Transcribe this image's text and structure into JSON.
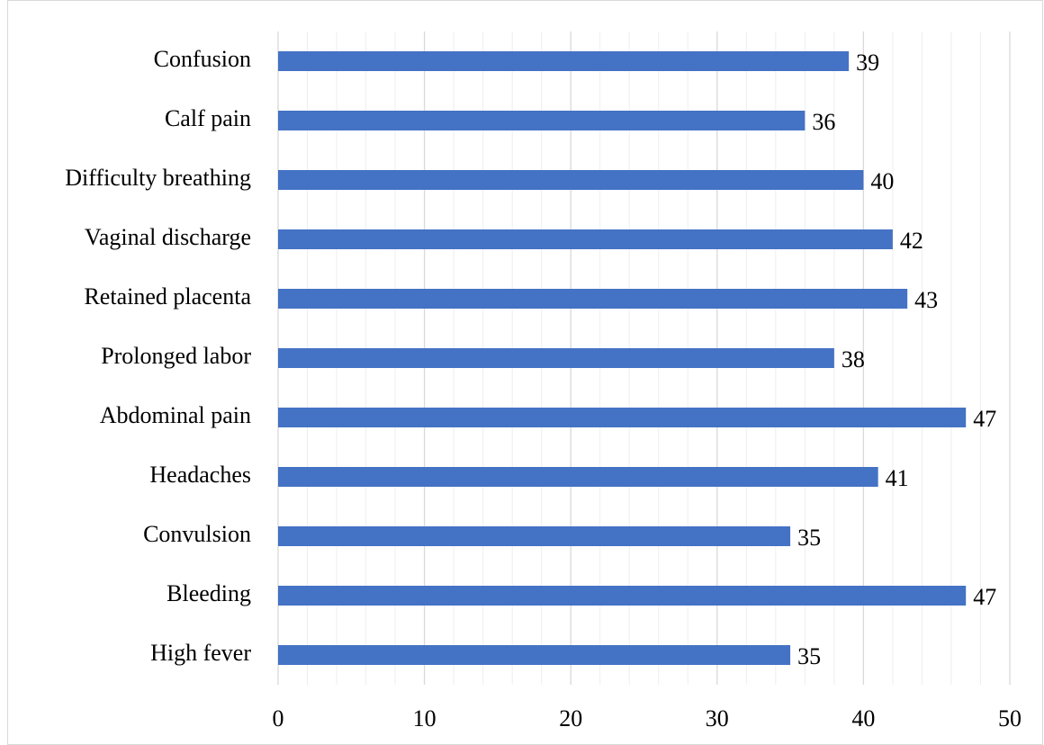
{
  "chart_data": {
    "type": "hbar",
    "categories": [
      "Confusion",
      "Calf pain",
      "Difficulty breathing",
      "Vaginal discharge",
      "Retained placenta",
      "Prolonged labor",
      "Abdominal pain",
      "Headaches",
      "Convulsion",
      "Bleeding",
      "High fever"
    ],
    "values": [
      39,
      36,
      40,
      42,
      43,
      38,
      47,
      41,
      35,
      47,
      35
    ],
    "color": "#4472c4",
    "xlim": [
      0,
      50
    ],
    "xticks": [
      0,
      10,
      20,
      30,
      40,
      50
    ],
    "xminorticks": [
      2,
      4,
      6,
      8,
      12,
      14,
      16,
      18,
      22,
      24,
      26,
      28,
      32,
      34,
      36,
      38,
      42,
      44,
      46,
      48
    ],
    "grid": true
  }
}
